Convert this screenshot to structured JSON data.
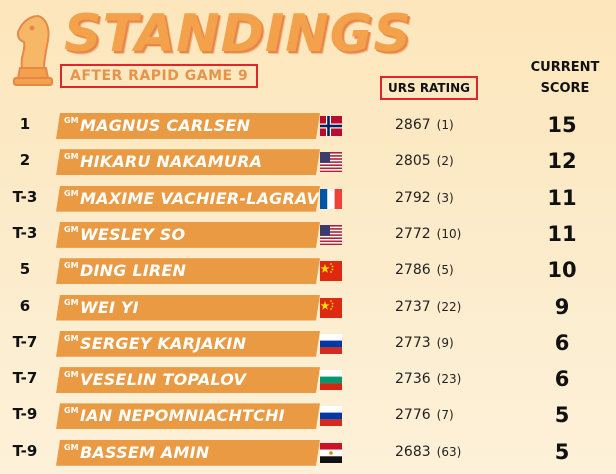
{
  "header": {
    "title": "STANDINGS",
    "subtitle": "AFTER RAPID GAME 9",
    "rating_label": "URS RATING",
    "score_label_1": "CURRENT",
    "score_label_2": "SCORE"
  },
  "colors": {
    "accent": "#f3a24b",
    "bar": "#e99a42",
    "highlight_box": "#e0262a"
  },
  "rows": [
    {
      "rank": "1",
      "title": "GM",
      "name": "MAGNUS CARLSEN",
      "flag": "norway-flag",
      "rating": "2867",
      "rating_rank": "(1)",
      "score": "15"
    },
    {
      "rank": "2",
      "title": "GM",
      "name": "HIKARU NAKAMURA",
      "flag": "usa-flag",
      "rating": "2805",
      "rating_rank": "(2)",
      "score": "12"
    },
    {
      "rank": "T-3",
      "title": "GM",
      "name": "MAXIME VACHIER-LAGRAVE",
      "flag": "france-flag",
      "rating": "2792",
      "rating_rank": "(3)",
      "score": "11"
    },
    {
      "rank": "T-3",
      "title": "GM",
      "name": "WESLEY SO",
      "flag": "usa-flag",
      "rating": "2772",
      "rating_rank": "(10)",
      "score": "11"
    },
    {
      "rank": "5",
      "title": "GM",
      "name": "DING LIREN",
      "flag": "china-flag",
      "rating": "2786",
      "rating_rank": "(5)",
      "score": "10"
    },
    {
      "rank": "6",
      "title": "GM",
      "name": "WEI YI",
      "flag": "china-flag",
      "rating": "2737",
      "rating_rank": "(22)",
      "score": "9"
    },
    {
      "rank": "T-7",
      "title": "GM",
      "name": "SERGEY KARJAKIN",
      "flag": "russia-flag",
      "rating": "2773",
      "rating_rank": "(9)",
      "score": "6"
    },
    {
      "rank": "T-7",
      "title": "GM",
      "name": "VESELIN TOPALOV",
      "flag": "bulgaria-flag",
      "rating": "2736",
      "rating_rank": "(23)",
      "score": "6"
    },
    {
      "rank": "T-9",
      "title": "GM",
      "name": "IAN NEPOMNIACHTCHI",
      "flag": "russia-flag",
      "rating": "2776",
      "rating_rank": "(7)",
      "score": "5"
    },
    {
      "rank": "T-9",
      "title": "GM",
      "name": "BASSEM AMIN",
      "flag": "egypt-flag",
      "rating": "2683",
      "rating_rank": "(63)",
      "score": "5"
    }
  ]
}
